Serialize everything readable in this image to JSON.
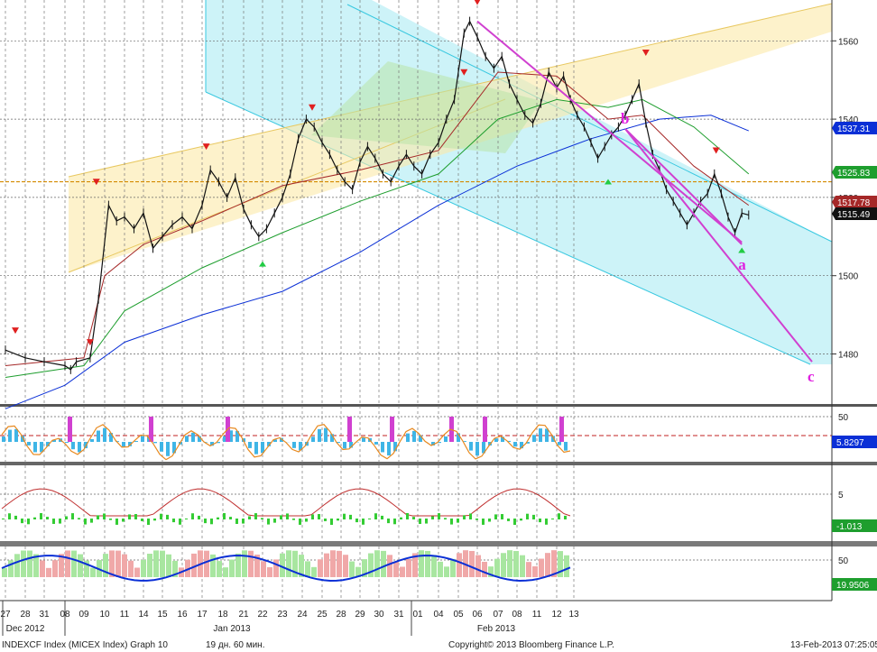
{
  "chart_data": {
    "type": "line",
    "security": "INDEXCF Index (MICEX Index)",
    "footer": {
      "left": "INDEXCF Index (MICEX Index) Graph 10",
      "center": "19 дн. 60 мин.",
      "copyright": "Copyright© 2013 Bloomberg Finance L.P.",
      "timestamp": "13-Feb-2013 07:25:05"
    },
    "x_ticks": [
      "27",
      "28",
      "31",
      "08",
      "09",
      "10",
      "11",
      "14",
      "15",
      "16",
      "17",
      "18",
      "21",
      "22",
      "23",
      "24",
      "25",
      "28",
      "29",
      "30",
      "31",
      "01",
      "04",
      "05",
      "06",
      "07",
      "08",
      "11",
      "12",
      "13"
    ],
    "month_labels": [
      "Dec 2012",
      "Jan 2013",
      "Feb 2013"
    ],
    "main_panel": {
      "y_ticks": [
        1480,
        1500,
        1520,
        1540,
        1560
      ],
      "ylim": [
        1465,
        1570
      ],
      "price_tags": [
        {
          "label": "1537.31",
          "value": 1537.31,
          "color": "#0a2fd6"
        },
        {
          "label": "1525.83",
          "value": 1525.83,
          "color": "#1e9e2e"
        },
        {
          "label": "1517.78",
          "value": 1517.78,
          "color": "#a52828"
        },
        {
          "label": "1515.49",
          "value": 1515.49,
          "color": "#111111"
        }
      ],
      "horizontal_level": 1524.0,
      "wave_labels": [
        "a",
        "b",
        "c"
      ],
      "price_path": [
        [
          0,
          1481
        ],
        [
          1,
          1479
        ],
        [
          2,
          1478
        ],
        [
          3,
          1477
        ],
        [
          3.3,
          1476
        ],
        [
          3.6,
          1478
        ],
        [
          4.3,
          1479
        ],
        [
          4.7,
          1494
        ],
        [
          5.2,
          1518
        ],
        [
          5.6,
          1514
        ],
        [
          6,
          1515
        ],
        [
          6.5,
          1512
        ],
        [
          7,
          1516
        ],
        [
          7.5,
          1507
        ],
        [
          8,
          1510
        ],
        [
          8.5,
          1513
        ],
        [
          9,
          1515
        ],
        [
          9.5,
          1512
        ],
        [
          10,
          1518
        ],
        [
          10.4,
          1527
        ],
        [
          10.8,
          1524
        ],
        [
          11.2,
          1520
        ],
        [
          11.6,
          1525
        ],
        [
          12,
          1517
        ],
        [
          12.4,
          1513
        ],
        [
          12.8,
          1510
        ],
        [
          13.2,
          1512
        ],
        [
          13.6,
          1516
        ],
        [
          14,
          1520
        ],
        [
          14.4,
          1526
        ],
        [
          14.8,
          1535
        ],
        [
          15.2,
          1540
        ],
        [
          15.6,
          1538
        ],
        [
          16,
          1534
        ],
        [
          16.4,
          1531
        ],
        [
          16.8,
          1527
        ],
        [
          17.2,
          1524
        ],
        [
          17.6,
          1522
        ],
        [
          18,
          1529
        ],
        [
          18.4,
          1533
        ],
        [
          18.8,
          1530
        ],
        [
          19.2,
          1526
        ],
        [
          19.6,
          1524
        ],
        [
          20,
          1528
        ],
        [
          20.4,
          1531
        ],
        [
          20.8,
          1528
        ],
        [
          21.2,
          1526
        ],
        [
          21.6,
          1531
        ],
        [
          22,
          1534
        ],
        [
          22.4,
          1540
        ],
        [
          22.8,
          1545
        ],
        [
          23,
          1552
        ],
        [
          23.3,
          1562
        ],
        [
          23.6,
          1565
        ],
        [
          24,
          1561
        ],
        [
          24.4,
          1556
        ],
        [
          24.8,
          1553
        ],
        [
          25.2,
          1556
        ],
        [
          25.6,
          1549
        ],
        [
          26,
          1545
        ],
        [
          26.4,
          1541
        ],
        [
          26.8,
          1539
        ],
        [
          27.2,
          1544
        ],
        [
          27.6,
          1552
        ],
        [
          28,
          1548
        ],
        [
          28.4,
          1551
        ],
        [
          28.8,
          1545
        ],
        [
          29.2,
          1541
        ],
        [
          29.6,
          1538
        ],
        [
          30,
          1534
        ],
        [
          30.4,
          1530
        ],
        [
          30.8,
          1533
        ],
        [
          31.2,
          1536
        ],
        [
          31.6,
          1538
        ],
        [
          32,
          1541
        ],
        [
          32.4,
          1545
        ],
        [
          32.8,
          1549
        ],
        [
          33.2,
          1539
        ],
        [
          33.6,
          1531
        ],
        [
          34,
          1527
        ],
        [
          34.4,
          1522
        ],
        [
          34.8,
          1519
        ],
        [
          35.2,
          1516
        ],
        [
          35.6,
          1513
        ],
        [
          36,
          1516
        ],
        [
          36.4,
          1519
        ],
        [
          36.8,
          1521
        ],
        [
          37.2,
          1526
        ],
        [
          37.6,
          1521
        ],
        [
          38,
          1515
        ],
        [
          38.4,
          1511
        ],
        [
          38.8,
          1516
        ],
        [
          39.2,
          1515.5
        ]
      ],
      "ma_series": [
        {
          "name": "",
          "color": "#0a2fd6",
          "values": [
            [
              0,
              1466
            ],
            [
              3,
              1472
            ],
            [
              6,
              1483
            ],
            [
              10,
              1490
            ],
            [
              14,
              1496
            ],
            [
              18,
              1506
            ],
            [
              22,
              1518
            ],
            [
              26,
              1528
            ],
            [
              30,
              1535
            ],
            [
              34,
              1540
            ],
            [
              37,
              1541
            ],
            [
              39.2,
              1537
            ]
          ]
        },
        {
          "name": "",
          "color": "#1e9e2e",
          "values": [
            [
              0,
              1474
            ],
            [
              4,
              1477
            ],
            [
              6,
              1491
            ],
            [
              10,
              1502
            ],
            [
              14,
              1511
            ],
            [
              18,
              1519
            ],
            [
              22,
              1526
            ],
            [
              25,
              1540
            ],
            [
              28,
              1545
            ],
            [
              31,
              1543
            ],
            [
              33,
              1545
            ],
            [
              36,
              1538
            ],
            [
              39.2,
              1526
            ]
          ]
        },
        {
          "name": "",
          "color": "#a52828",
          "values": [
            [
              0,
              1477
            ],
            [
              4,
              1479
            ],
            [
              5,
              1500
            ],
            [
              7,
              1508
            ],
            [
              10,
              1514
            ],
            [
              14,
              1523
            ],
            [
              18,
              1527
            ],
            [
              22,
              1532
            ],
            [
              25,
              1552
            ],
            [
              28,
              1551
            ],
            [
              31,
              1540
            ],
            [
              33,
              1541
            ],
            [
              36,
              1528
            ],
            [
              39.2,
              1518
            ]
          ]
        }
      ],
      "projection": [
        [
          "a",
          1508
        ],
        [
          "b",
          1537.5
        ],
        [
          "c",
          1478
        ]
      ],
      "up_arrows": [
        [
          13,
          1506
        ],
        [
          31,
          1527
        ],
        [
          38.8,
          1509.5
        ]
      ],
      "down_arrows": [
        [
          0.5,
          1484
        ],
        [
          4.3,
          1481
        ],
        [
          4.6,
          1522
        ],
        [
          10.2,
          1531
        ],
        [
          15.5,
          1541
        ],
        [
          23.3,
          1550
        ],
        [
          24,
          1568
        ],
        [
          33.2,
          1555
        ],
        [
          37.3,
          1530
        ]
      ]
    },
    "indicator_1": {
      "y_ticks": [
        50
      ],
      "value_tag": "5.8297",
      "tag_color": "#0a2fd6"
    },
    "indicator_2": {
      "y_ticks": [
        5
      ],
      "value_tags": [
        "-1.013"
      ],
      "tag_color": "#1e9e2e"
    },
    "indicator_3": {
      "y_ticks": [
        50
      ],
      "value_tag": "19.9506",
      "tag_color": "#1e9e2e"
    }
  }
}
